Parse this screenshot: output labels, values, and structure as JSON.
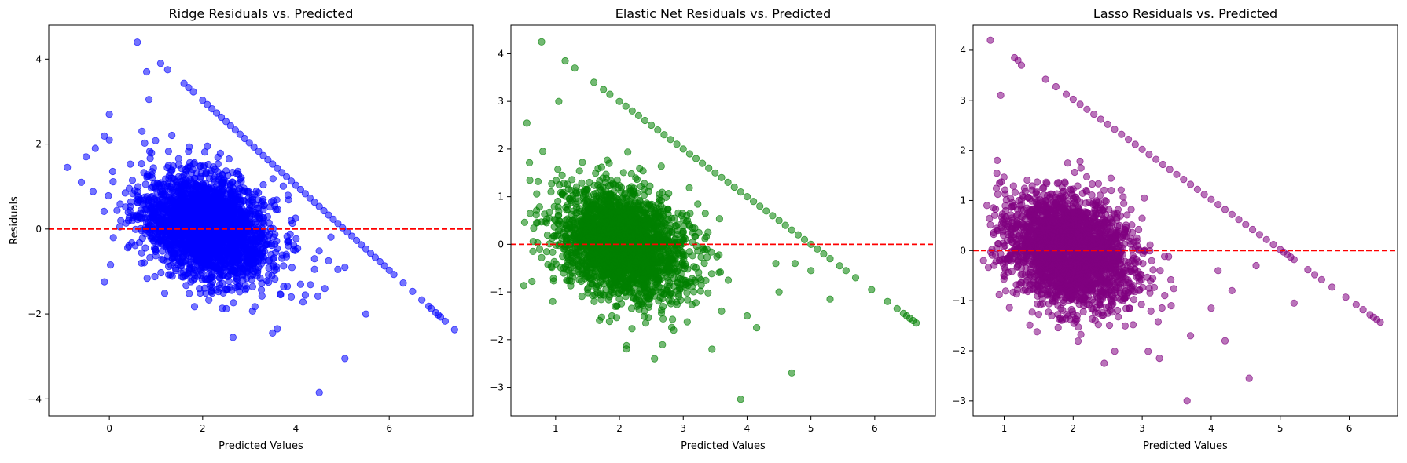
{
  "chart_data": [
    {
      "type": "scatter",
      "title": "Ridge Residuals vs. Predicted",
      "xlabel": "Predicted Values",
      "ylabel": "Residuals",
      "xlim": [
        -1.3,
        7.8
      ],
      "ylim": [
        -4.4,
        4.8
      ],
      "xticks": [
        0,
        2,
        4,
        6
      ],
      "yticks": [
        -4,
        -2,
        0,
        2,
        4
      ],
      "color": "#0000ff",
      "reference_line": {
        "y": 0,
        "color": "#ff0000",
        "style": "dashed"
      },
      "boundary_intercept": 5.03,
      "cluster_center": [
        2.1,
        0.05
      ],
      "cluster_spread": [
        0.7,
        0.6
      ],
      "n_points": 2600,
      "points": [
        [
          -0.9,
          1.45
        ],
        [
          -0.6,
          1.1
        ],
        [
          -0.5,
          1.7
        ],
        [
          -0.3,
          1.9
        ],
        [
          0.0,
          2.7
        ],
        [
          0.0,
          2.1
        ],
        [
          0.6,
          4.4
        ],
        [
          1.1,
          3.9
        ],
        [
          1.25,
          3.75
        ],
        [
          0.8,
          3.7
        ],
        [
          0.85,
          3.05
        ],
        [
          0.7,
          2.3
        ],
        [
          2.65,
          -2.55
        ],
        [
          3.5,
          -2.45
        ],
        [
          3.6,
          -2.35
        ],
        [
          4.1,
          -1.3
        ],
        [
          4.5,
          -3.85
        ],
        [
          5.05,
          -3.05
        ],
        [
          5.5,
          -2.0
        ],
        [
          5.05,
          -0.9
        ],
        [
          4.9,
          -0.95
        ],
        [
          4.4,
          -0.7
        ],
        [
          4.7,
          -0.75
        ],
        [
          3.9,
          -1.6
        ]
      ],
      "boundary_points_x": [
        1.6,
        1.7,
        1.8,
        2.0,
        2.1,
        2.2,
        2.3,
        2.4,
        2.5,
        2.6,
        2.7,
        2.8,
        2.9,
        3.0,
        3.1,
        3.2,
        3.3,
        3.4,
        3.5,
        3.6,
        3.7,
        3.8,
        3.9,
        4.0,
        4.1,
        4.2,
        4.3,
        4.4,
        4.5,
        4.6,
        4.7,
        4.8,
        4.9,
        5.0,
        5.1,
        5.2,
        5.3,
        5.4,
        5.5,
        5.6,
        5.7,
        5.8,
        5.9,
        6.0,
        6.1,
        6.3,
        6.5,
        6.7,
        6.85,
        6.9,
        7.0,
        7.05,
        7.1,
        7.2,
        7.4
      ]
    },
    {
      "type": "scatter",
      "title": "Elastic Net Residuals vs. Predicted",
      "xlabel": "Predicted Values",
      "ylabel": "",
      "xlim": [
        0.3,
        6.95
      ],
      "ylim": [
        -3.6,
        4.6
      ],
      "xticks": [
        1,
        2,
        3,
        4,
        5,
        6
      ],
      "yticks": [
        -3,
        -2,
        -1,
        0,
        1,
        2,
        3,
        4
      ],
      "color": "#008000",
      "reference_line": {
        "y": 0,
        "color": "#ff0000",
        "style": "dashed"
      },
      "boundary_intercept": 5.0,
      "cluster_center": [
        2.05,
        0.0
      ],
      "cluster_spread": [
        0.5,
        0.55
      ],
      "n_points": 2600,
      "points": [
        [
          0.78,
          4.25
        ],
        [
          1.15,
          3.85
        ],
        [
          1.3,
          3.7
        ],
        [
          1.05,
          3.0
        ],
        [
          0.8,
          1.95
        ],
        [
          0.6,
          0.65
        ],
        [
          0.7,
          0.45
        ],
        [
          0.75,
          -0.1
        ],
        [
          2.55,
          -2.4
        ],
        [
          2.85,
          -1.8
        ],
        [
          3.45,
          -2.2
        ],
        [
          3.9,
          -3.25
        ],
        [
          4.15,
          -1.75
        ],
        [
          4.7,
          -2.7
        ],
        [
          4.5,
          -1.0
        ],
        [
          4.45,
          -0.4
        ],
        [
          4.0,
          -1.5
        ],
        [
          3.6,
          -1.4
        ],
        [
          4.75,
          -0.4
        ],
        [
          5.3,
          -1.15
        ],
        [
          5.0,
          -0.55
        ]
      ],
      "boundary_points_x": [
        1.6,
        1.75,
        1.85,
        2.0,
        2.1,
        2.2,
        2.3,
        2.4,
        2.5,
        2.6,
        2.7,
        2.8,
        2.9,
        3.0,
        3.1,
        3.2,
        3.3,
        3.4,
        3.5,
        3.6,
        3.7,
        3.8,
        3.9,
        4.0,
        4.1,
        4.2,
        4.3,
        4.4,
        4.5,
        4.6,
        4.7,
        4.8,
        4.9,
        5.0,
        5.1,
        5.2,
        5.3,
        5.45,
        5.55,
        5.7,
        5.95,
        6.2,
        6.35,
        6.45,
        6.5,
        6.55,
        6.6,
        6.65
      ]
    },
    {
      "type": "scatter",
      "title": "Lasso Residuals vs. Predicted",
      "xlabel": "Predicted Values",
      "ylabel": "",
      "xlim": [
        0.55,
        6.7
      ],
      "ylim": [
        -3.3,
        4.5
      ],
      "xticks": [
        1,
        2,
        3,
        4,
        5,
        6
      ],
      "yticks": [
        -3,
        -2,
        -1,
        0,
        1,
        2,
        3,
        4
      ],
      "color": "#800080",
      "reference_line": {
        "y": 0,
        "color": "#ff0000",
        "style": "dashed"
      },
      "boundary_intercept": 5.02,
      "cluster_center": [
        1.95,
        0.0
      ],
      "cluster_spread": [
        0.45,
        0.55
      ],
      "n_points": 2600,
      "points": [
        [
          0.8,
          4.2
        ],
        [
          1.15,
          3.85
        ],
        [
          1.2,
          3.8
        ],
        [
          1.25,
          3.7
        ],
        [
          0.95,
          3.1
        ],
        [
          0.9,
          1.8
        ],
        [
          0.75,
          0.9
        ],
        [
          0.7,
          -0.2
        ],
        [
          2.45,
          -2.25
        ],
        [
          3.25,
          -2.15
        ],
        [
          3.65,
          -3.0
        ],
        [
          4.55,
          -2.55
        ],
        [
          3.7,
          -1.7
        ],
        [
          4.0,
          -1.15
        ],
        [
          4.3,
          -0.8
        ],
        [
          4.2,
          -1.8
        ],
        [
          4.1,
          -0.4
        ],
        [
          5.2,
          -1.05
        ],
        [
          4.65,
          -0.3
        ]
      ],
      "boundary_points_x": [
        1.6,
        1.75,
        1.9,
        2.0,
        2.1,
        2.2,
        2.3,
        2.4,
        2.5,
        2.6,
        2.7,
        2.8,
        2.9,
        3.0,
        3.1,
        3.2,
        3.3,
        3.4,
        3.5,
        3.6,
        3.7,
        3.8,
        3.9,
        4.0,
        4.1,
        4.2,
        4.3,
        4.4,
        4.5,
        4.6,
        4.7,
        4.8,
        4.9,
        5.0,
        5.05,
        5.1,
        5.15,
        5.2,
        5.4,
        5.5,
        5.6,
        5.75,
        5.95,
        6.1,
        6.2,
        6.3,
        6.35,
        6.4,
        6.45
      ]
    }
  ]
}
